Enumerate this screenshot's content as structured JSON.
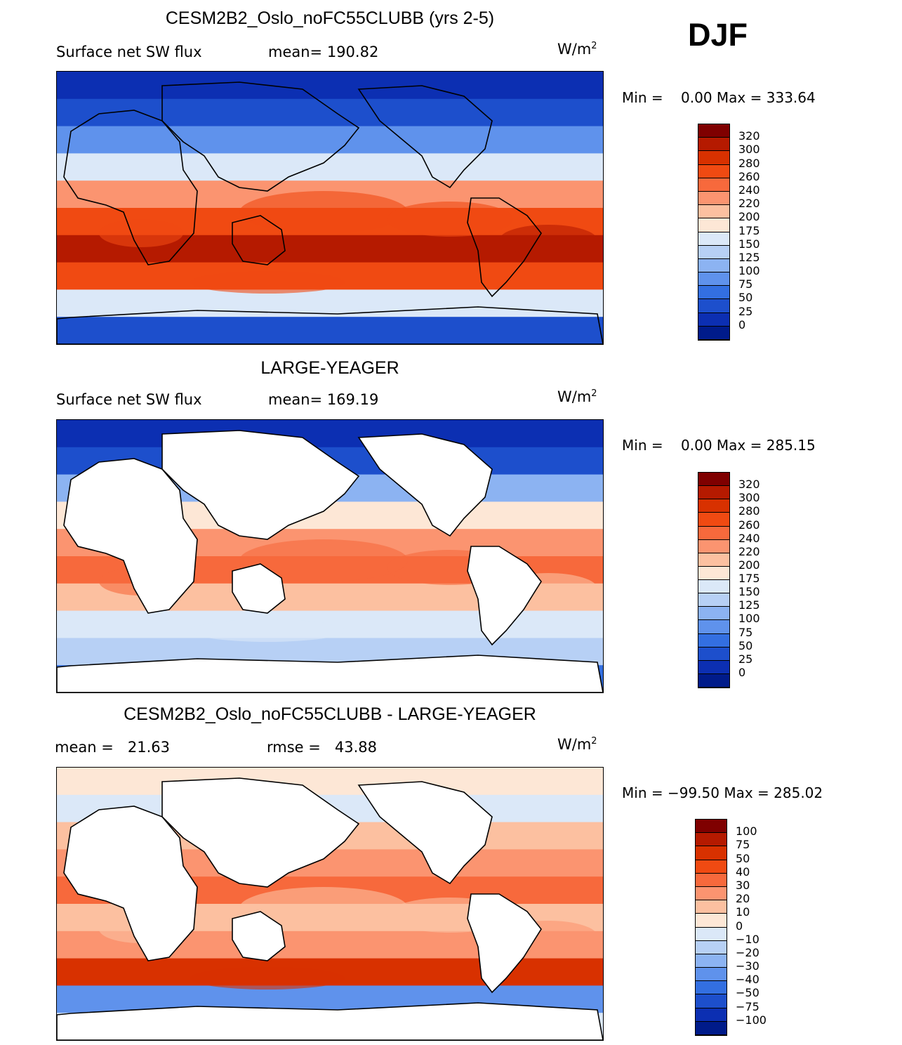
{
  "season": "DJF",
  "panels": [
    {
      "title": "CESM2B2_Oslo_noFC55CLUBB (yrs 2-5)",
      "left_label": "Surface net SW flux",
      "right_label": "mean= 190.82",
      "units": "W/m",
      "units_exp": "2",
      "minmax": "Min =    0.00 Max = 333.64",
      "land_masked": false,
      "colorbar": {
        "labels": [
          "320",
          "300",
          "280",
          "260",
          "240",
          "220",
          "200",
          "175",
          "150",
          "125",
          "100",
          "75",
          "50",
          "25",
          "0"
        ],
        "colors": [
          "#7f0000",
          "#b51a00",
          "#d83100",
          "#f04a12",
          "#f7693c",
          "#fb9470",
          "#fcc0a0",
          "#fde7d6",
          "#dbe8f8",
          "#b7d0f5",
          "#8cb3f2",
          "#5f92ec",
          "#336fe1",
          "#1d4fcc",
          "#0c2fb2",
          "#001b8a"
        ]
      },
      "bands": [
        "#0c2fb2",
        "#1d4fcc",
        "#5f92ec",
        "#dbe8f8",
        "#fb9470",
        "#f04a12",
        "#b51a00",
        "#f04a12",
        "#dbe8f8",
        "#1d4fcc"
      ]
    },
    {
      "title": "LARGE-YEAGER",
      "left_label": "Surface net SW flux",
      "right_label": "mean= 169.19",
      "units": "W/m",
      "units_exp": "2",
      "minmax": "Min =    0.00 Max = 285.15",
      "land_masked": true,
      "colorbar": {
        "labels": [
          "320",
          "300",
          "280",
          "260",
          "240",
          "220",
          "200",
          "175",
          "150",
          "125",
          "100",
          "75",
          "50",
          "25",
          "0"
        ],
        "colors": [
          "#7f0000",
          "#b51a00",
          "#d83100",
          "#f04a12",
          "#f7693c",
          "#fb9470",
          "#fcc0a0",
          "#fde7d6",
          "#dbe8f8",
          "#b7d0f5",
          "#8cb3f2",
          "#5f92ec",
          "#336fe1",
          "#1d4fcc",
          "#0c2fb2",
          "#001b8a"
        ]
      },
      "bands": [
        "#0c2fb2",
        "#1d4fcc",
        "#8cb3f2",
        "#fde7d6",
        "#fb9470",
        "#f7693c",
        "#fcc0a0",
        "#dbe8f8",
        "#b7d0f5",
        "#336fe1"
      ]
    },
    {
      "title": "CESM2B2_Oslo_noFC55CLUBB - LARGE-YEAGER",
      "left_label": "mean =   21.63",
      "right_label": "rmse =   43.88",
      "units": "W/m",
      "units_exp": "2",
      "minmax": "Min = −99.50 Max = 285.02",
      "land_masked": true,
      "colorbar": {
        "labels": [
          "100",
          "75",
          "50",
          "40",
          "30",
          "20",
          "10",
          "0",
          "−10",
          "−20",
          "−30",
          "−40",
          "−50",
          "−75",
          "−100"
        ],
        "colors": [
          "#7f0000",
          "#b51a00",
          "#d83100",
          "#f04a12",
          "#f7693c",
          "#fb9470",
          "#fcc0a0",
          "#fde7d6",
          "#dbe8f8",
          "#b7d0f5",
          "#8cb3f2",
          "#5f92ec",
          "#336fe1",
          "#1d4fcc",
          "#0c2fb2",
          "#001b8a"
        ]
      },
      "bands": [
        "#fde7d6",
        "#dbe8f8",
        "#fcc0a0",
        "#fb9470",
        "#f7693c",
        "#fcc0a0",
        "#fb9470",
        "#d83100",
        "#5f92ec",
        "#dbe8f8"
      ]
    }
  ]
}
